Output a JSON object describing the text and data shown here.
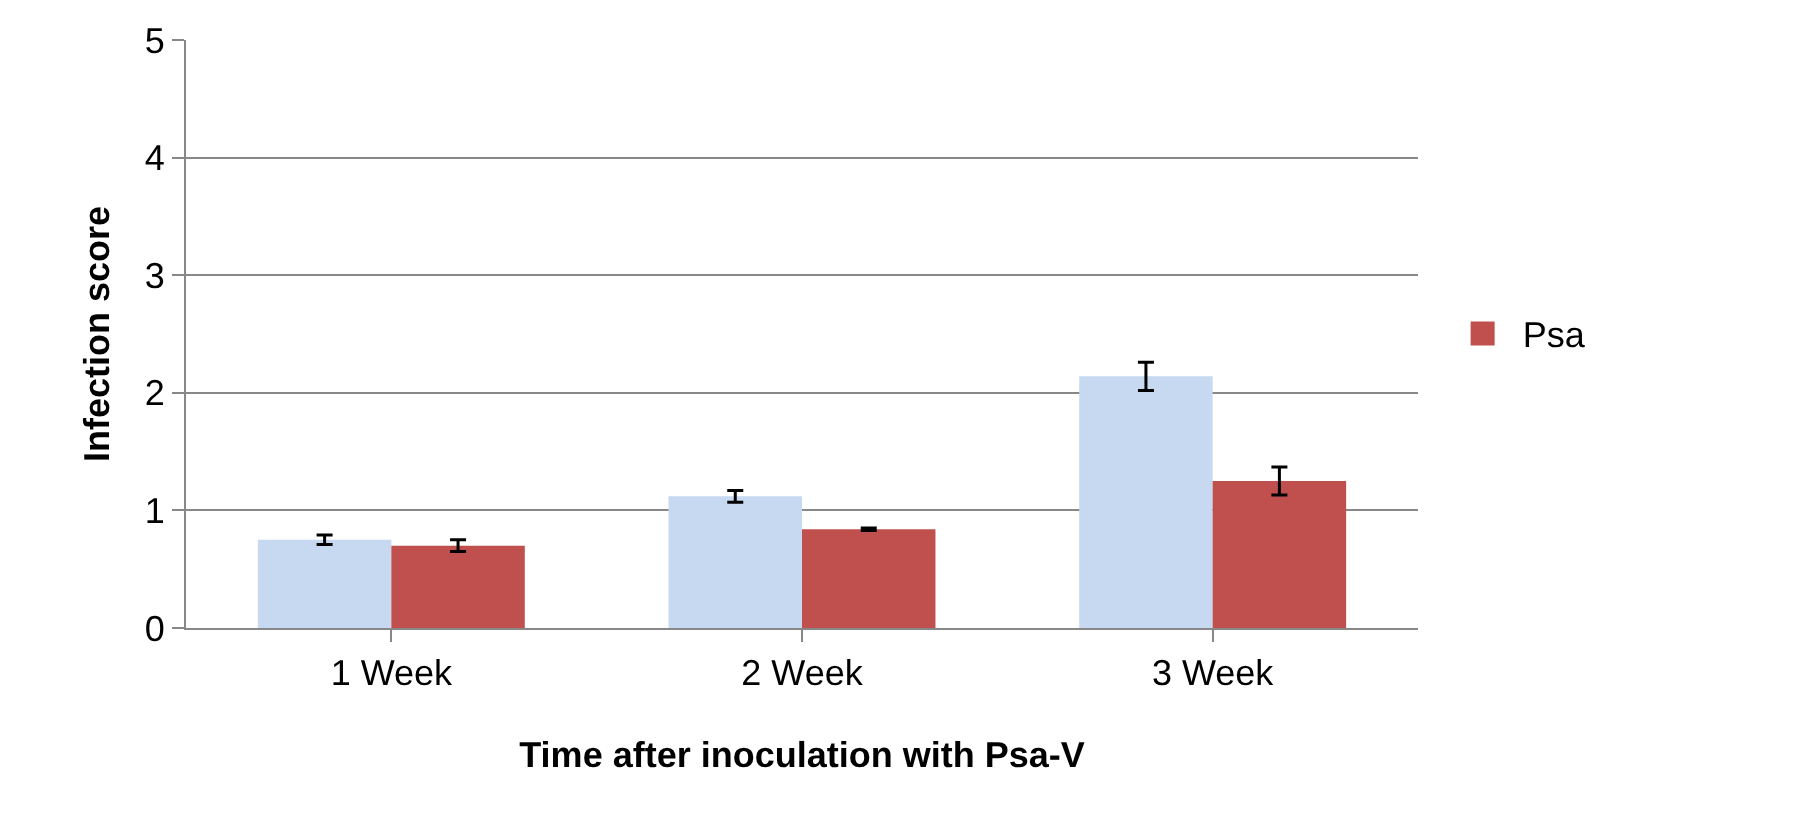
{
  "chart_data": {
    "type": "bar",
    "xlabel": "Time after inoculation with Psa-V",
    "ylabel": "Infection score",
    "categories": [
      "1 Week",
      "2 Week",
      "3 Week"
    ],
    "series": [
      {
        "color": "#c6d9f1",
        "values": [
          0.75,
          1.12,
          2.14
        ],
        "errors": [
          0.04,
          0.05,
          0.12
        ]
      },
      {
        "name": "Psa",
        "color": "#c0504d",
        "values": [
          0.7,
          0.84,
          1.25
        ],
        "errors": [
          0.05,
          0.01,
          0.12
        ]
      }
    ],
    "ylim": [
      0,
      5
    ],
    "yticks": [
      0,
      1,
      2,
      3,
      4,
      5
    ],
    "grid": "y",
    "legend": "right"
  }
}
